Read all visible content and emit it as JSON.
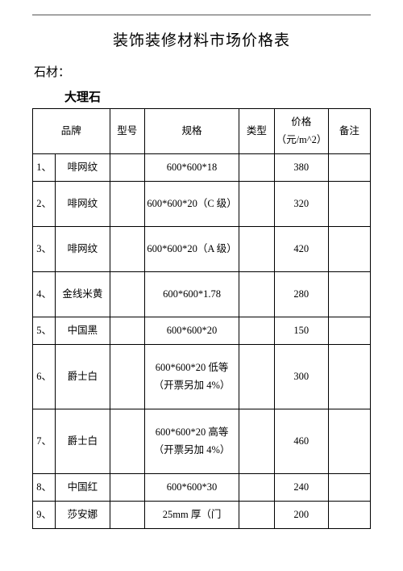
{
  "page_title": "装饰装修材料市场价格表",
  "section_label": "石材：",
  "sub_heading": "大理石",
  "table": {
    "columns": [
      "品牌",
      "型号",
      "规格",
      "类型",
      "价格（元/m^2）",
      "备注"
    ],
    "rows": [
      {
        "idx": "1、",
        "brand": "啡网纹",
        "model": "",
        "spec": "600*600*18",
        "type": "",
        "price": "380",
        "note": "",
        "h": "r1"
      },
      {
        "idx": "2、",
        "brand": "啡网纹",
        "model": "",
        "spec": "600*600*20（C 级）",
        "type": "",
        "price": "320",
        "note": "",
        "h": "r2"
      },
      {
        "idx": "3、",
        "brand": "啡网纹",
        "model": "",
        "spec": "600*600*20（A 级）",
        "type": "",
        "price": "420",
        "note": "",
        "h": "r2"
      },
      {
        "idx": "4、",
        "brand": "金线米黄",
        "model": "",
        "spec": "600*600*1.78",
        "type": "",
        "price": "280",
        "note": "",
        "h": "r2"
      },
      {
        "idx": "5、",
        "brand": "中国黑",
        "model": "",
        "spec": "600*600*20",
        "type": "",
        "price": "150",
        "note": "",
        "h": "r1"
      },
      {
        "idx": "6、",
        "brand": "爵士白",
        "model": "",
        "spec": "600*600*20 低等（开票另加 4%）",
        "type": "",
        "price": "300",
        "note": "",
        "h": "r3"
      },
      {
        "idx": "7、",
        "brand": "爵士白",
        "model": "",
        "spec": "600*600*20 高等（开票另加 4%）",
        "type": "",
        "price": "460",
        "note": "",
        "h": "r3"
      },
      {
        "idx": "8、",
        "brand": "中国红",
        "model": "",
        "spec": "600*600*30",
        "type": "",
        "price": "240",
        "note": "",
        "h": "r1"
      },
      {
        "idx": "9、",
        "brand": "莎安娜",
        "model": "",
        "spec": "25mm 厚（门",
        "type": "",
        "price": "200",
        "note": "",
        "h": "r1"
      }
    ]
  },
  "colors": {
    "text": "#000000",
    "border": "#000000",
    "bg": "#ffffff",
    "rule": "#555555"
  },
  "typography": {
    "title_fontsize": 19,
    "body_fontsize": 12.5,
    "line_height": 1.7
  }
}
